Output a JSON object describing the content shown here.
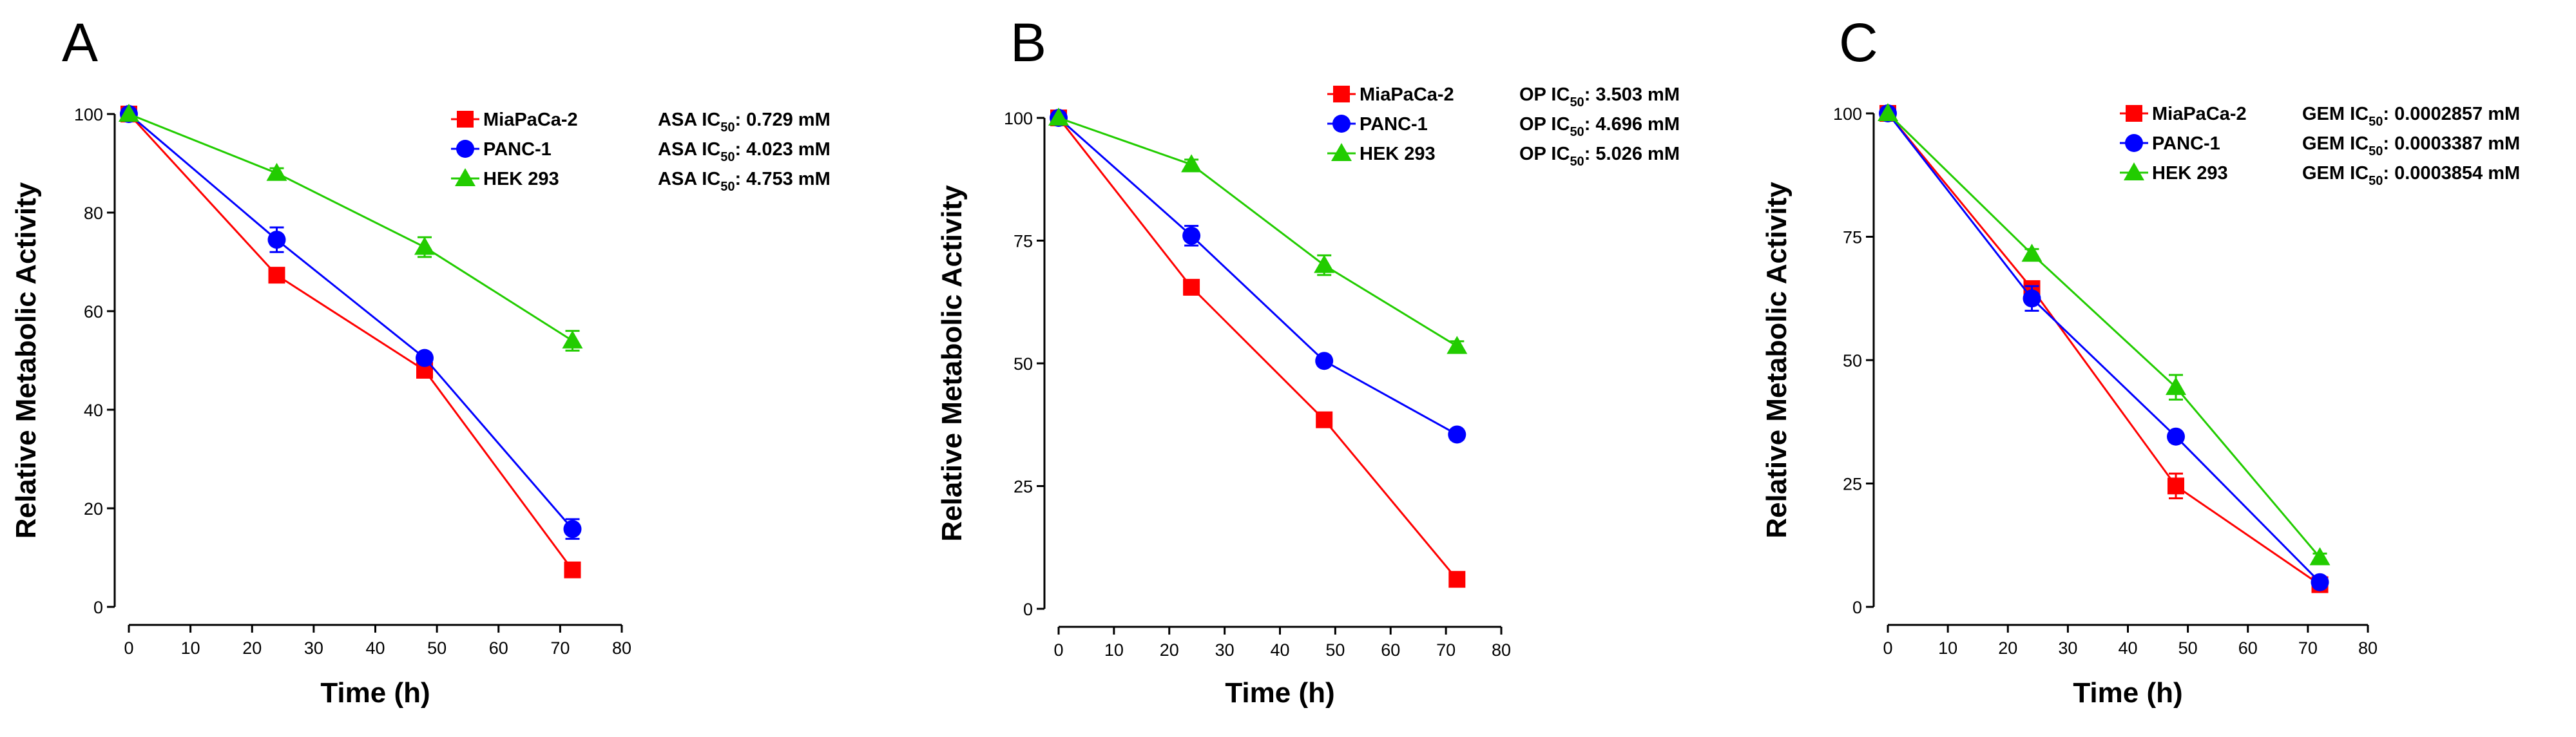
{
  "chart_data": [
    {
      "type": "line",
      "panel_label": "A",
      "xlabel": "Time (h)",
      "ylabel": "Relative Metabolic Activity",
      "xlim": [
        0,
        80
      ],
      "ylim": [
        0,
        100
      ],
      "x_ticks": [
        0,
        10,
        20,
        30,
        40,
        50,
        60,
        70,
        80
      ],
      "y_ticks": [
        0,
        20,
        40,
        60,
        80,
        100
      ],
      "legend_position": "top-right",
      "series": [
        {
          "name": "MiaPaCa-2",
          "marker": "square",
          "color": "#ff0000",
          "x": [
            0,
            24,
            48,
            72
          ],
          "values": [
            100,
            67.3,
            48.0,
            7.5
          ],
          "errors": [
            0,
            1.0,
            1.0,
            0.8
          ],
          "ic50_prefix": "ASA IC",
          "ic50_sub": "50",
          "ic50_value": ": 0.729 mM"
        },
        {
          "name": "PANC-1",
          "marker": "circle",
          "color": "#0000ff",
          "x": [
            0,
            24,
            48,
            72
          ],
          "values": [
            100,
            74.5,
            50.5,
            15.8
          ],
          "errors": [
            0,
            2.5,
            1.0,
            2.0
          ],
          "ic50_prefix": "ASA IC",
          "ic50_sub": "50",
          "ic50_value": ": 4.023 mM"
        },
        {
          "name": "HEK 293",
          "marker": "triangle",
          "color": "#22cc00",
          "x": [
            0,
            24,
            48,
            72
          ],
          "values": [
            100,
            88.0,
            73.0,
            54.0
          ],
          "errors": [
            0,
            1.0,
            2.0,
            2.0
          ],
          "ic50_prefix": "ASA IC",
          "ic50_sub": "50",
          "ic50_value": ":  4.753 mM"
        }
      ]
    },
    {
      "type": "line",
      "panel_label": "B",
      "xlabel": "Time (h)",
      "ylabel": "Relative Metabolic Activity",
      "xlim": [
        0,
        80
      ],
      "ylim": [
        0,
        100
      ],
      "x_ticks": [
        0,
        10,
        20,
        30,
        40,
        50,
        60,
        70,
        80
      ],
      "y_ticks": [
        0,
        25,
        50,
        75,
        100
      ],
      "legend_position": "top-right",
      "series": [
        {
          "name": "MiaPaCa-2",
          "marker": "square",
          "color": "#ff0000",
          "x": [
            0,
            24,
            48,
            72
          ],
          "values": [
            100,
            65.5,
            38.5,
            6.0
          ],
          "errors": [
            0,
            1.5,
            1.0,
            0.8
          ],
          "ic50_prefix": "OP IC",
          "ic50_sub": "50",
          "ic50_value": ": 3.503 mM"
        },
        {
          "name": "PANC-1",
          "marker": "circle",
          "color": "#0000ff",
          "x": [
            0,
            24,
            48,
            72
          ],
          "values": [
            100,
            76.0,
            50.5,
            35.5
          ],
          "errors": [
            0,
            2.0,
            1.0,
            1.0
          ],
          "ic50_prefix": "OP IC",
          "ic50_sub": "50",
          "ic50_value": ": 4.696 mM"
        },
        {
          "name": "HEK 293",
          "marker": "triangle",
          "color": "#22cc00",
          "x": [
            0,
            24,
            48,
            72
          ],
          "values": [
            100,
            90.5,
            70.0,
            53.5
          ],
          "errors": [
            0,
            1.0,
            2.0,
            1.0
          ],
          "ic50_prefix": "OP IC",
          "ic50_sub": "50",
          "ic50_value": ": 5.026 mM"
        }
      ]
    },
    {
      "type": "line",
      "panel_label": "C",
      "xlabel": "Time (h)",
      "ylabel": "Relative Metabolic Activity",
      "xlim": [
        0,
        80
      ],
      "ylim": [
        0,
        100
      ],
      "x_ticks": [
        0,
        10,
        20,
        30,
        40,
        50,
        60,
        70,
        80
      ],
      "y_ticks": [
        0,
        25,
        50,
        75,
        100
      ],
      "legend_position": "top-right",
      "series": [
        {
          "name": "MiaPaCa-2",
          "marker": "square",
          "color": "#ff0000",
          "x": [
            0,
            24,
            48,
            72
          ],
          "values": [
            100,
            64.5,
            24.5,
            4.5
          ],
          "errors": [
            0,
            1.5,
            2.5,
            0.8
          ],
          "ic50_prefix": "GEM IC",
          "ic50_sub": "50",
          "ic50_value": ":  0.0002857 mM"
        },
        {
          "name": "PANC-1",
          "marker": "circle",
          "color": "#0000ff",
          "x": [
            0,
            24,
            48,
            72
          ],
          "values": [
            100,
            62.5,
            34.5,
            5.0
          ],
          "errors": [
            0,
            2.5,
            1.0,
            0.8
          ],
          "ic50_prefix": "GEM IC",
          "ic50_sub": "50",
          "ic50_value": ":  0.0003387 mM"
        },
        {
          "name": "HEK 293",
          "marker": "triangle",
          "color": "#22cc00",
          "x": [
            0,
            24,
            48,
            72
          ],
          "values": [
            100,
            71.5,
            44.5,
            10.0
          ],
          "errors": [
            0,
            1.0,
            2.5,
            0.8
          ],
          "ic50_prefix": "GEM IC",
          "ic50_sub": "50",
          "ic50_value": ":  0.0003854 mM"
        }
      ]
    }
  ]
}
